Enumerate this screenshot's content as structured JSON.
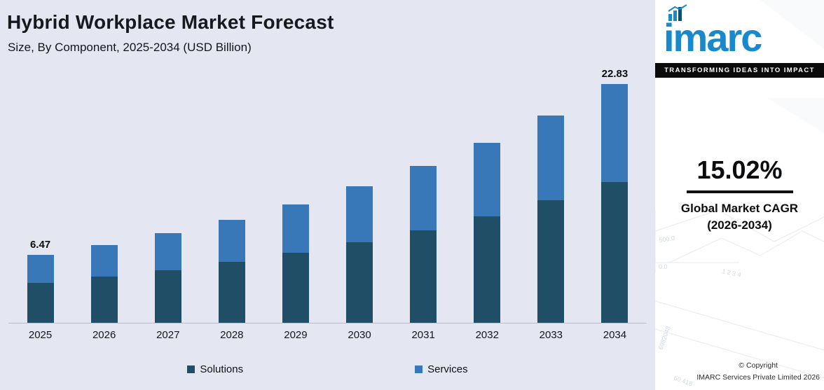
{
  "chart_data": {
    "type": "bar",
    "stacked": true,
    "title": "Hybrid Workplace Market Forecast",
    "subtitle": "Size, By Component, 2025-2034 (USD Billion)",
    "unit": "USD Billion",
    "categories": [
      "2025",
      "2026",
      "2027",
      "2028",
      "2029",
      "2030",
      "2031",
      "2032",
      "2033",
      "2034"
    ],
    "series": [
      {
        "name": "Solutions",
        "color": "#1f4e66",
        "values": [
          3.82,
          4.39,
          5.05,
          5.81,
          6.68,
          7.69,
          8.84,
          10.17,
          11.7,
          13.47
        ]
      },
      {
        "name": "Services",
        "color": "#3878b8",
        "values": [
          2.65,
          3.05,
          3.51,
          4.03,
          4.64,
          5.34,
          6.14,
          7.06,
          8.12,
          9.36
        ]
      }
    ],
    "totals": [
      6.47,
      7.44,
      8.56,
      9.84,
      11.32,
      13.03,
      14.98,
      17.23,
      19.82,
      22.83
    ],
    "bar_labels": [
      "6.47",
      "",
      "",
      "",
      "",
      "",
      "",
      "",
      "",
      "22.83"
    ],
    "ylim": [
      0,
      22.83
    ],
    "grid": false,
    "legend_position": "bottom"
  },
  "sidebar": {
    "logo_text": "imarc",
    "tagline": "TRANSFORMING IDEAS INTO IMPACT",
    "cagr_value": "15.02%",
    "cagr_label": "Global Market CAGR",
    "cagr_years": "(2026-2034)",
    "copyright_line1": "© Copyright",
    "copyright_line2": "IMARC Services Private Limited 2026",
    "decor_texts": [
      "500.0",
      "0.0",
      "1 2 3 4",
      "6982048",
      "60.418"
    ]
  },
  "colors": {
    "chart_background": "#e4e6f1",
    "solutions": "#1f4e66",
    "services": "#3878b8",
    "brand_blue": "#1789cc",
    "tagline_bar": "#0b0b0b"
  }
}
